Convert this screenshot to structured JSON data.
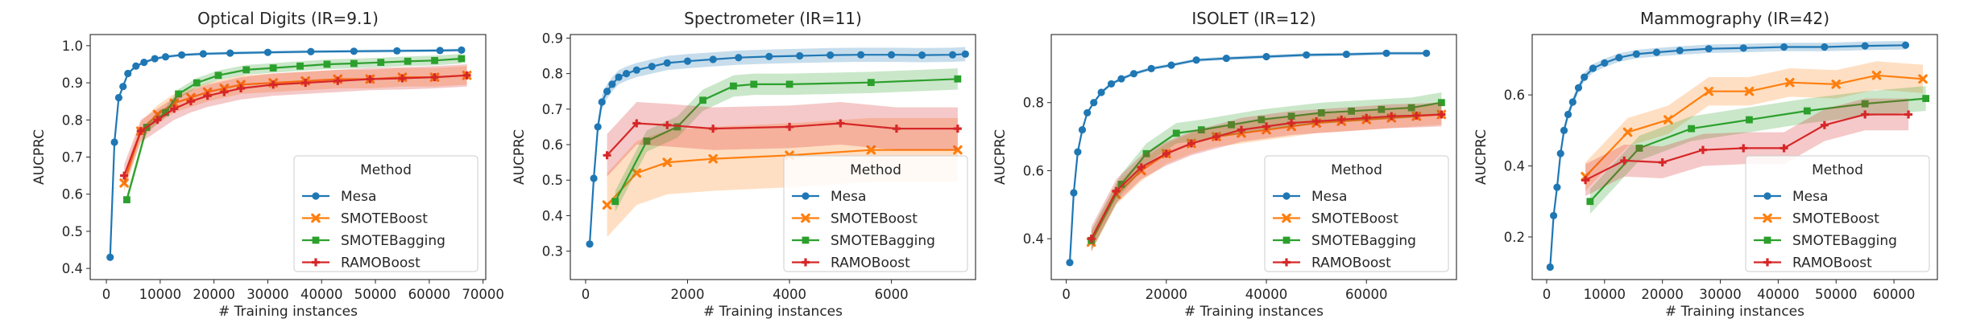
{
  "figure": {
    "legend_title": "Method"
  },
  "chart_data": [
    {
      "type": "line",
      "title": "Optical Digits (IR=9.1)",
      "xlabel": "# Training instances",
      "ylabel": "AUCPRC",
      "xlim": [
        -3000,
        70500
      ],
      "ylim": [
        0.37,
        1.03
      ],
      "xticks": [
        0,
        10000,
        20000,
        30000,
        40000,
        50000,
        60000,
        70000
      ],
      "xtick_labels": [
        "0",
        "10000",
        "20000",
        "30000",
        "40000",
        "50000",
        "60000",
        "70000"
      ],
      "yticks": [
        0.4,
        0.5,
        0.6,
        0.7,
        0.8,
        0.9,
        1.0
      ],
      "ytick_labels": [
        "0.4",
        "0.5",
        "0.6",
        "0.7",
        "0.8",
        "0.9",
        "1.0"
      ],
      "legend_position": "lower-right",
      "series": [
        {
          "name": "Mesa",
          "color": "#1f77b4",
          "marker": "circle",
          "x": [
            700,
            1500,
            2300,
            3100,
            4000,
            5500,
            7000,
            9000,
            11000,
            14000,
            18000,
            23000,
            30000,
            38000,
            46000,
            54000,
            62000,
            66000
          ],
          "y": [
            0.43,
            0.74,
            0.86,
            0.89,
            0.925,
            0.945,
            0.955,
            0.965,
            0.97,
            0.975,
            0.978,
            0.98,
            0.982,
            0.984,
            0.985,
            0.986,
            0.987,
            0.988
          ],
          "band": 0.004
        },
        {
          "name": "SMOTEBoost",
          "color": "#ff7f0e",
          "marker": "x",
          "x": [
            3300,
            6400,
            9500,
            12600,
            15700,
            18800,
            21900,
            25000,
            31000,
            37000,
            43000,
            49000,
            55000,
            61000,
            67000
          ],
          "y": [
            0.63,
            0.77,
            0.815,
            0.845,
            0.86,
            0.875,
            0.885,
            0.895,
            0.9,
            0.905,
            0.91,
            0.91,
            0.915,
            0.915,
            0.92
          ],
          "band": 0.025
        },
        {
          "name": "SMOTEBagging",
          "color": "#2ca02c",
          "marker": "square",
          "x": [
            3800,
            7500,
            11000,
            13400,
            16800,
            20800,
            26000,
            31000,
            36000,
            41000,
            46000,
            51000,
            56000,
            61000,
            66000
          ],
          "y": [
            0.585,
            0.78,
            0.82,
            0.87,
            0.9,
            0.92,
            0.935,
            0.94,
            0.945,
            0.95,
            0.952,
            0.955,
            0.958,
            0.96,
            0.965
          ],
          "band": 0.013
        },
        {
          "name": "RAMOBoost",
          "color": "#d62728",
          "marker": "plus",
          "x": [
            3300,
            6400,
            9500,
            12600,
            15700,
            18800,
            21900,
            25000,
            31000,
            37000,
            43000,
            49000,
            55000,
            61000,
            67000
          ],
          "y": [
            0.65,
            0.77,
            0.8,
            0.83,
            0.85,
            0.865,
            0.875,
            0.885,
            0.895,
            0.9,
            0.905,
            0.91,
            0.912,
            0.915,
            0.92
          ],
          "band": 0.03
        }
      ]
    },
    {
      "type": "line",
      "title": "Spectrometer (IR=11)",
      "xlabel": "# Training instances",
      "ylabel": "AUCPRC",
      "xlim": [
        -300,
        7650
      ],
      "ylim": [
        0.22,
        0.91
      ],
      "xticks": [
        0,
        2000,
        4000,
        6000
      ],
      "xtick_labels": [
        "0",
        "2000",
        "4000",
        "6000"
      ],
      "yticks": [
        0.3,
        0.4,
        0.5,
        0.6,
        0.7,
        0.8,
        0.9
      ],
      "ytick_labels": [
        "0.3",
        "0.4",
        "0.5",
        "0.6",
        "0.7",
        "0.8",
        "0.9"
      ],
      "legend_position": "lower-right",
      "series": [
        {
          "name": "Mesa",
          "color": "#1f77b4",
          "marker": "circle",
          "x": [
            80,
            160,
            240,
            320,
            420,
            520,
            650,
            800,
            1000,
            1300,
            1600,
            2000,
            2500,
            3000,
            3600,
            4200,
            4800,
            5400,
            6000,
            6600,
            7200,
            7450
          ],
          "y": [
            0.32,
            0.505,
            0.65,
            0.72,
            0.75,
            0.77,
            0.79,
            0.8,
            0.81,
            0.82,
            0.83,
            0.835,
            0.84,
            0.845,
            0.848,
            0.85,
            0.852,
            0.853,
            0.853,
            0.852,
            0.853,
            0.855
          ],
          "band": 0.02
        },
        {
          "name": "SMOTEBoost",
          "color": "#ff7f0e",
          "marker": "x",
          "x": [
            420,
            1000,
            1600,
            2500,
            4000,
            5600,
            7300
          ],
          "y": [
            0.43,
            0.52,
            0.55,
            0.56,
            0.57,
            0.585,
            0.585
          ],
          "band": 0.09
        },
        {
          "name": "SMOTEBagging",
          "color": "#2ca02c",
          "marker": "square",
          "x": [
            580,
            1200,
            1800,
            2300,
            2900,
            3300,
            4000,
            5600,
            7300
          ],
          "y": [
            0.44,
            0.61,
            0.65,
            0.725,
            0.765,
            0.77,
            0.77,
            0.775,
            0.785
          ],
          "band": 0.03
        },
        {
          "name": "RAMOBoost",
          "color": "#d62728",
          "marker": "plus",
          "x": [
            420,
            1000,
            1600,
            2500,
            4000,
            5000,
            6100,
            7300
          ],
          "y": [
            0.57,
            0.66,
            0.655,
            0.645,
            0.65,
            0.66,
            0.645,
            0.645
          ],
          "band": 0.06
        }
      ]
    },
    {
      "type": "line",
      "title": "ISOLET (IR=12)",
      "xlabel": "# Training instances",
      "ylabel": "AUCPRC",
      "xlim": [
        -3000,
        78000
      ],
      "ylim": [
        0.28,
        1.0
      ],
      "xticks": [
        0,
        20000,
        40000,
        60000
      ],
      "xtick_labels": [
        "0",
        "20000",
        "40000",
        "60000"
      ],
      "yticks": [
        0.4,
        0.6,
        0.8
      ],
      "ytick_labels": [
        "0.4",
        "0.6",
        "0.8"
      ],
      "legend_position": "lower-right",
      "series": [
        {
          "name": "Mesa",
          "color": "#1f77b4",
          "marker": "circle",
          "x": [
            700,
            1500,
            2300,
            3200,
            4200,
            5500,
            7000,
            9000,
            11000,
            13500,
            17000,
            21000,
            26000,
            32000,
            40000,
            48000,
            56000,
            64000,
            72000
          ],
          "y": [
            0.33,
            0.535,
            0.655,
            0.72,
            0.77,
            0.8,
            0.83,
            0.855,
            0.87,
            0.885,
            0.9,
            0.91,
            0.925,
            0.93,
            0.935,
            0.94,
            0.942,
            0.945,
            0.945
          ],
          "band": 0.005
        },
        {
          "name": "SMOTEBoost",
          "color": "#ff7f0e",
          "marker": "x",
          "x": [
            5000,
            10000,
            15000,
            20000,
            25000,
            30000,
            35000,
            40000,
            45000,
            50000,
            55000,
            60000,
            65000,
            70000,
            75000
          ],
          "y": [
            0.39,
            0.53,
            0.6,
            0.65,
            0.68,
            0.7,
            0.71,
            0.72,
            0.73,
            0.74,
            0.745,
            0.75,
            0.755,
            0.76,
            0.765
          ],
          "band": 0.03
        },
        {
          "name": "SMOTEBagging",
          "color": "#2ca02c",
          "marker": "square",
          "x": [
            5000,
            11000,
            16000,
            22000,
            27000,
            33000,
            39000,
            45000,
            51000,
            57000,
            63000,
            69000,
            75000
          ],
          "y": [
            0.395,
            0.56,
            0.65,
            0.71,
            0.72,
            0.735,
            0.75,
            0.76,
            0.77,
            0.775,
            0.78,
            0.785,
            0.8
          ],
          "band": 0.03
        },
        {
          "name": "RAMOBoost",
          "color": "#d62728",
          "marker": "plus",
          "x": [
            5000,
            10000,
            15000,
            20000,
            25000,
            30000,
            35000,
            40000,
            45000,
            50000,
            55000,
            60000,
            65000,
            70000,
            75000
          ],
          "y": [
            0.4,
            0.54,
            0.61,
            0.65,
            0.68,
            0.7,
            0.72,
            0.73,
            0.74,
            0.745,
            0.75,
            0.755,
            0.76,
            0.762,
            0.765
          ],
          "band": 0.035
        }
      ]
    },
    {
      "type": "line",
      "title": "Mammography (IR=42)",
      "xlabel": "# Training instances",
      "ylabel": "AUCPRC",
      "xlim": [
        -2500,
        67500
      ],
      "ylim": [
        0.08,
        0.77
      ],
      "xticks": [
        0,
        10000,
        20000,
        30000,
        40000,
        50000,
        60000
      ],
      "xtick_labels": [
        "0",
        "10000",
        "20000",
        "30000",
        "40000",
        "50000",
        "60000"
      ],
      "yticks": [
        0.2,
        0.4,
        0.6
      ],
      "ytick_labels": [
        "0.2",
        "0.4",
        "0.6"
      ],
      "legend_position": "lower-right",
      "series": [
        {
          "name": "Mesa",
          "color": "#1f77b4",
          "marker": "circle",
          "x": [
            600,
            1200,
            1800,
            2400,
            3000,
            3700,
            4500,
            5500,
            6500,
            8000,
            10000,
            12500,
            15500,
            19000,
            23000,
            28000,
            34000,
            41000,
            48000,
            55000,
            62000
          ],
          "y": [
            0.115,
            0.26,
            0.34,
            0.435,
            0.5,
            0.545,
            0.58,
            0.62,
            0.65,
            0.675,
            0.69,
            0.705,
            0.715,
            0.72,
            0.725,
            0.73,
            0.732,
            0.735,
            0.735,
            0.738,
            0.74
          ],
          "band": 0.012
        },
        {
          "name": "SMOTEBoost",
          "color": "#ff7f0e",
          "marker": "x",
          "x": [
            6700,
            14000,
            21000,
            28000,
            35000,
            42000,
            50000,
            57000,
            65000
          ],
          "y": [
            0.37,
            0.495,
            0.53,
            0.61,
            0.61,
            0.635,
            0.63,
            0.655,
            0.645
          ],
          "band": 0.04
        },
        {
          "name": "SMOTEBagging",
          "color": "#2ca02c",
          "marker": "square",
          "x": [
            7500,
            16000,
            25000,
            35000,
            45000,
            55000,
            65500
          ],
          "y": [
            0.3,
            0.45,
            0.505,
            0.53,
            0.555,
            0.575,
            0.59
          ],
          "band": 0.035
        },
        {
          "name": "RAMOBoost",
          "color": "#d62728",
          "marker": "plus",
          "x": [
            6700,
            13400,
            20000,
            27000,
            34000,
            41000,
            48000,
            55000,
            62500
          ],
          "y": [
            0.36,
            0.415,
            0.41,
            0.445,
            0.45,
            0.45,
            0.515,
            0.545,
            0.545
          ],
          "band": 0.045
        }
      ]
    }
  ]
}
